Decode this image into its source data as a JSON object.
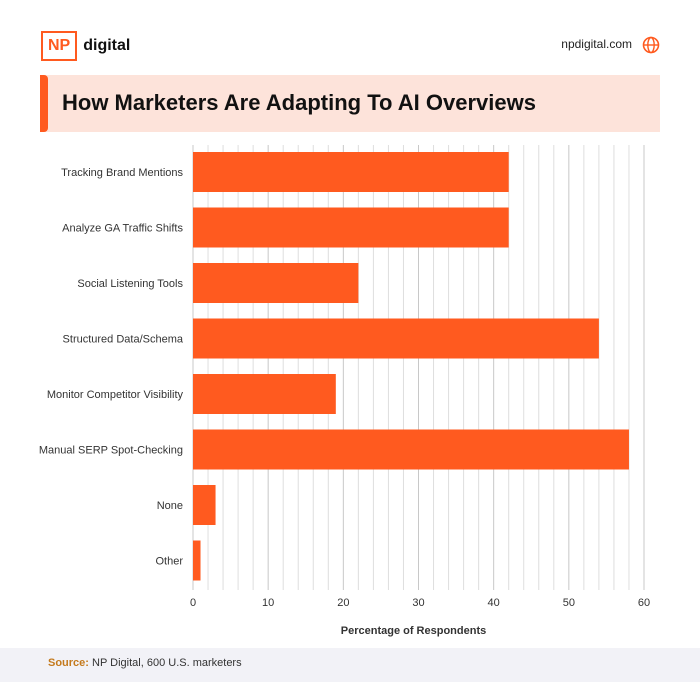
{
  "header": {
    "logo_box": "NP",
    "logo_text": "digital",
    "site": "npdigital.com",
    "icon": "globe-icon"
  },
  "colors": {
    "accent": "#ff5a1f",
    "bar": "#ff5a1f",
    "title_band": "#fde3da",
    "source_label": "#c47a1d",
    "grid": "#d4d4d4"
  },
  "footer": {
    "source_label": "Source:",
    "source_text": " NP Digital, 600 U.S. marketers"
  },
  "chart_data": {
    "type": "bar",
    "orientation": "horizontal",
    "title": "How Marketers Are Adapting To AI Overviews",
    "xlabel": "Percentage of Respondents",
    "ylabel": "",
    "categories": [
      "Tracking Brand Mentions",
      "Analyze GA Traffic Shifts",
      "Social Listening Tools",
      "Structured Data/Schema",
      "Monitor Competitor Visibility",
      "Manual SERP Spot-Checking",
      "None",
      "Other"
    ],
    "values": [
      42,
      42,
      22,
      54,
      19,
      58,
      3,
      1
    ],
    "xlim": [
      0,
      60
    ],
    "xticks": [
      0,
      10,
      20,
      30,
      40,
      50,
      60
    ],
    "grid": true,
    "legend": "none"
  }
}
